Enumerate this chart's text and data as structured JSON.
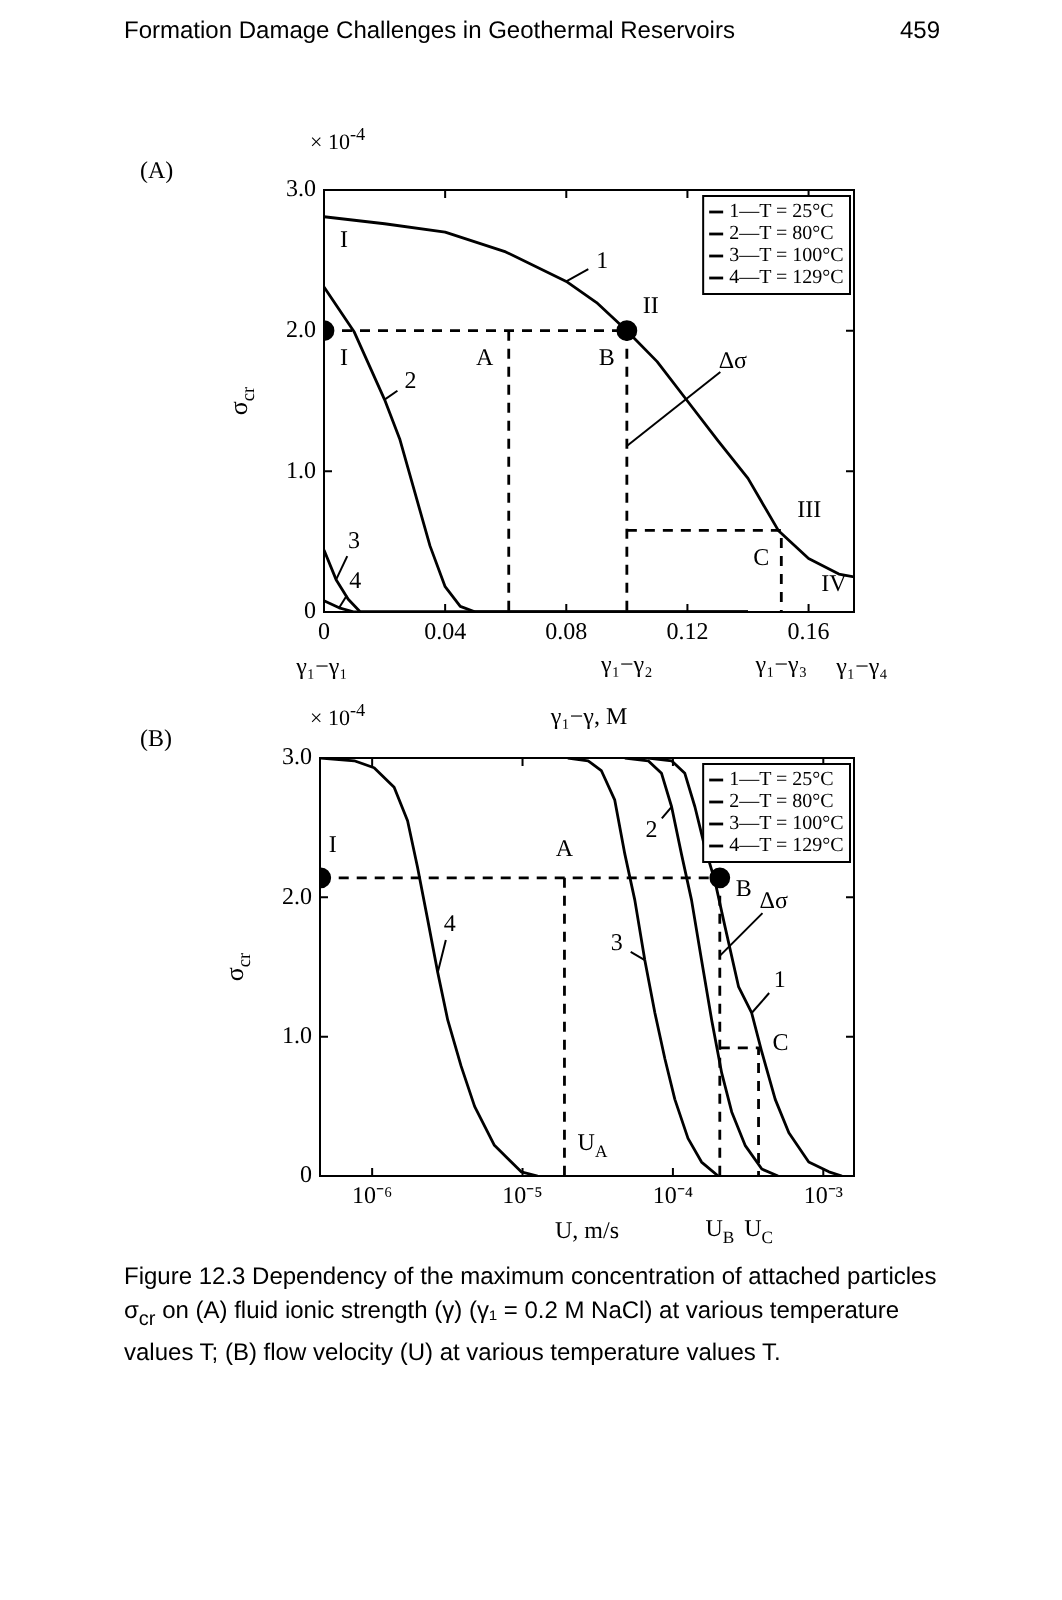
{
  "chart_data": [
    {
      "type": "line",
      "xlabel": "γ₁−γ, M",
      "ylabel": "σ$_{cr}$",
      "legend": "top right",
      "grid": false,
      "xlim": [
        0,
        0.175
      ],
      "xticks": [
        0,
        0.04,
        0.08,
        0.12,
        0.16
      ],
      "ylim": [
        0,
        3.0
      ],
      "yticks": [
        {
          "value": 0,
          "label": "0"
        },
        {
          "value": 1,
          "label": "1.0"
        },
        {
          "value": 2,
          "label": "2.0"
        },
        {
          "value": 3,
          "label": "3.0"
        }
      ],
      "series": [
        {
          "name": "1—T = 25°C",
          "color": "#000000",
          "x": [
            0,
            0.02,
            0.04,
            0.06,
            0.08,
            0.09,
            0.1,
            0.11,
            0.12,
            0.13,
            0.14,
            0.15,
            0.16,
            0.17,
            0.175
          ],
          "values": [
            2.81,
            2.76,
            2.7,
            2.56,
            2.35,
            2.2,
            2.0,
            1.78,
            1.5,
            1.22,
            0.95,
            0.58,
            0.38,
            0.27,
            0.25
          ]
        },
        {
          "name": "2—T = 80°C",
          "color": "#000000",
          "x": [
            0,
            0.01,
            0.02,
            0.025,
            0.03,
            0.035,
            0.04,
            0.045,
            0.05,
            0.14
          ],
          "values": [
            2.31,
            1.99,
            1.51,
            1.23,
            0.85,
            0.47,
            0.18,
            0.04,
            0,
            0
          ]
        },
        {
          "name": "3—T = 100°C",
          "color": "#000000",
          "x": [
            0,
            0.004,
            0.008,
            0.012,
            0.14
          ],
          "values": [
            0.44,
            0.23,
            0.09,
            0,
            0
          ]
        },
        {
          "name": "4—T = 129°C",
          "color": "#000000",
          "x": [
            0,
            0.005,
            0.01,
            0.14
          ],
          "values": [
            0.08,
            0.03,
            0,
            0
          ]
        },
        {
          "color": "#000000",
          "line_style": "dashed",
          "x": [
            0,
            0.1
          ],
          "values": [
            2.0,
            2.0
          ]
        },
        {
          "color": "#000000",
          "line_style": "dashed",
          "x": [
            0.061,
            0.061
          ],
          "values": [
            2.0,
            0
          ]
        },
        {
          "color": "#000000",
          "line_style": "dashed",
          "x": [
            0.1,
            0.1
          ],
          "values": [
            2.0,
            0
          ]
        },
        {
          "color": "#000000",
          "line_style": "dashed",
          "x": [
            0.1,
            0.151,
            0.151
          ],
          "values": [
            0.58,
            0.58,
            0
          ]
        },
        {
          "type": "scatter",
          "marker": "circle",
          "color": "#000000",
          "x": [
            0,
            0.1
          ],
          "values": [
            2.0,
            2.0
          ]
        }
      ],
      "annotations": [
        "Formation Damage Challenges in Geothermal Reservoirs",
        "459",
        "(A)",
        "× 10$^{-4}$",
        {
          "text": "I",
          "x": 0,
          "y": 2.81
        },
        {
          "text": "I",
          "x": 0,
          "y": 2.0
        },
        {
          "text": "II",
          "x": 0.1,
          "y": 2.0
        },
        {
          "text": "A",
          "x": 0.061,
          "y": 2.0
        },
        {
          "text": "B",
          "x": 0.1,
          "y": 2.0
        },
        {
          "text": "C",
          "x": 0.151,
          "y": 0.58
        },
        {
          "text": "III",
          "x": 0.151,
          "y": 0.58
        },
        {
          "text": "IV",
          "x": 0.175,
          "y": 0.25
        },
        {
          "text": "1",
          "x": 0.08,
          "y": 2.35
        },
        {
          "text": "2",
          "x": 0.02,
          "y": 1.51
        },
        {
          "text": "3",
          "x": 0.004,
          "y": 0.23
        },
        {
          "text": "4",
          "x": 0.005,
          "y": 0.03
        },
        {
          "text": "Δσ",
          "x": 0.1,
          "y": 1.18
        },
        "γ₁−γ₁",
        {
          "text": "γ₁−γ₂",
          "x": 0.1,
          "y": 0
        },
        {
          "text": "γ₁−γ₃",
          "x": 0.151,
          "y": 0
        },
        "γ₁−γ₄"
      ]
    },
    {
      "type": "line",
      "xlabel": "U, m/s",
      "ylabel": "σ$_{cr}$",
      "legend": "top right",
      "grid": false,
      "log": "x",
      "xlim": [
        4.5e-07,
        0.0016
      ],
      "xticks": [
        {
          "value": 1e-06,
          "label": "10⁻⁶"
        },
        {
          "value": 1e-05,
          "label": "10⁻⁵"
        },
        {
          "value": 0.0001,
          "label": "10⁻⁴"
        },
        {
          "value": 0.001,
          "label": "10⁻³"
        }
      ],
      "ylim": [
        0,
        3.0
      ],
      "yticks": [
        {
          "value": 0,
          "label": "0"
        },
        {
          "value": 1,
          "label": "1.0"
        },
        {
          "value": 2,
          "label": "2.0"
        },
        {
          "value": 3,
          "label": "3.0"
        }
      ],
      "series": [
        {
          "name": "1—T = 25°C",
          "color": "#000000",
          "x": [
            6.85e-05,
            9.8e-05,
            0.00012,
            0.00014,
            0.000163,
            0.00019,
            0.000222,
            0.000273,
            0.000334,
            0.00039,
            0.000479,
            0.00059,
            0.0008,
            0.00109,
            0.00133
          ],
          "values": [
            3.0,
            2.98,
            2.89,
            2.65,
            2.36,
            2.12,
            1.79,
            1.36,
            1.17,
            0.89,
            0.55,
            0.31,
            0.1,
            0.03,
            0
          ]
        },
        {
          "name": "2—T = 80°C",
          "color": "#000000",
          "x": [
            4.79e-05,
            6.85e-05,
            8.4e-05,
            9.8e-05,
            0.000114,
            0.000133,
            0.000155,
            0.000181,
            0.000211,
            0.000246,
            0.000302,
            0.00039,
            0.0005
          ],
          "values": [
            3.0,
            2.98,
            2.89,
            2.65,
            2.31,
            1.98,
            1.55,
            1.12,
            0.74,
            0.46,
            0.22,
            0.05,
            0
          ]
        },
        {
          "name": "3—T = 100°C",
          "color": "#000000",
          "x": [
            2e-05,
            2.73e-05,
            3.34e-05,
            4.1e-05,
            4.79e-05,
            5.58e-05,
            6.5e-05,
            7.59e-05,
            8.85e-05,
            0.000103,
            0.000126,
            0.000155,
            0.0002
          ],
          "values": [
            3.0,
            2.98,
            2.91,
            2.7,
            2.31,
            1.98,
            1.55,
            1.17,
            0.84,
            0.55,
            0.27,
            0.1,
            0
          ]
        },
        {
          "name": "4—T = 129°C",
          "color": "#000000",
          "x": [
            4.55e-07,
            7.6e-07,
            1.03e-06,
            1.4e-06,
            1.72e-06,
            2e-06,
            2.34e-06,
            2.73e-06,
            3.18e-06,
            3.9e-06,
            4.8e-06,
            6.5e-06,
            9.8e-06,
            1.26e-05
          ],
          "values": [
            3.0,
            2.98,
            2.93,
            2.79,
            2.55,
            2.22,
            1.84,
            1.46,
            1.12,
            0.79,
            0.5,
            0.22,
            0.03,
            0
          ]
        },
        {
          "color": "#000000",
          "line_style": "dashed",
          "x": [
            4.55e-07,
            0.000205
          ],
          "values": [
            2.14,
            2.14
          ]
        },
        {
          "color": "#000000",
          "line_style": "dashed",
          "x": [
            1.9e-05,
            1.9e-05
          ],
          "values": [
            2.14,
            0
          ]
        },
        {
          "color": "#000000",
          "line_style": "dashed",
          "x": [
            0.000205,
            0.000205
          ],
          "values": [
            2.14,
            0
          ]
        },
        {
          "color": "#000000",
          "line_style": "dashed",
          "x": [
            0.000205,
            0.000371,
            0.000371
          ],
          "values": [
            0.92,
            0.92,
            0
          ]
        },
        {
          "type": "scatter",
          "marker": "circle",
          "color": "#000000",
          "x": [
            4.55e-07,
            0.000205
          ],
          "values": [
            2.14,
            2.14
          ]
        }
      ],
      "annotations": [
        "(B)",
        "× 10$^{-4}$",
        "Figure 12.3 Dependency of the maximum concentration of attached particles σ$_{cr}$ on (A) fluid ionic strength (γ) (γ₁ = 0.2 M NaCl) at various temperature values T; (B) flow velocity (U) at various temperature values T.",
        {
          "text": "I",
          "x": 4.55e-07,
          "y": 2.14
        },
        {
          "text": "A",
          "x": 1.9e-05,
          "y": 2.14
        },
        {
          "text": "B",
          "x": 0.000205,
          "y": 2.14
        },
        {
          "text": "C",
          "x": 0.000371,
          "y": 0.92
        },
        {
          "text": "U$_{A}$",
          "x": 1.9e-05,
          "y": 0
        },
        {
          "text": "Δσ",
          "x": 0.000205,
          "y": 1.58
        },
        {
          "text": "1",
          "x": 0.000334,
          "y": 1.17
        },
        {
          "text": "2",
          "x": 9.8e-05,
          "y": 2.65
        },
        {
          "text": "3",
          "x": 6.5e-05,
          "y": 1.55
        },
        {
          "text": "4",
          "x": 2.73e-06,
          "y": 1.46
        },
        {
          "text": "U$_{B}$",
          "x": 0.000205,
          "y": 0
        },
        {
          "text": "U$_{C}$",
          "x": 0.000371,
          "y": 0
        }
      ]
    }
  ]
}
